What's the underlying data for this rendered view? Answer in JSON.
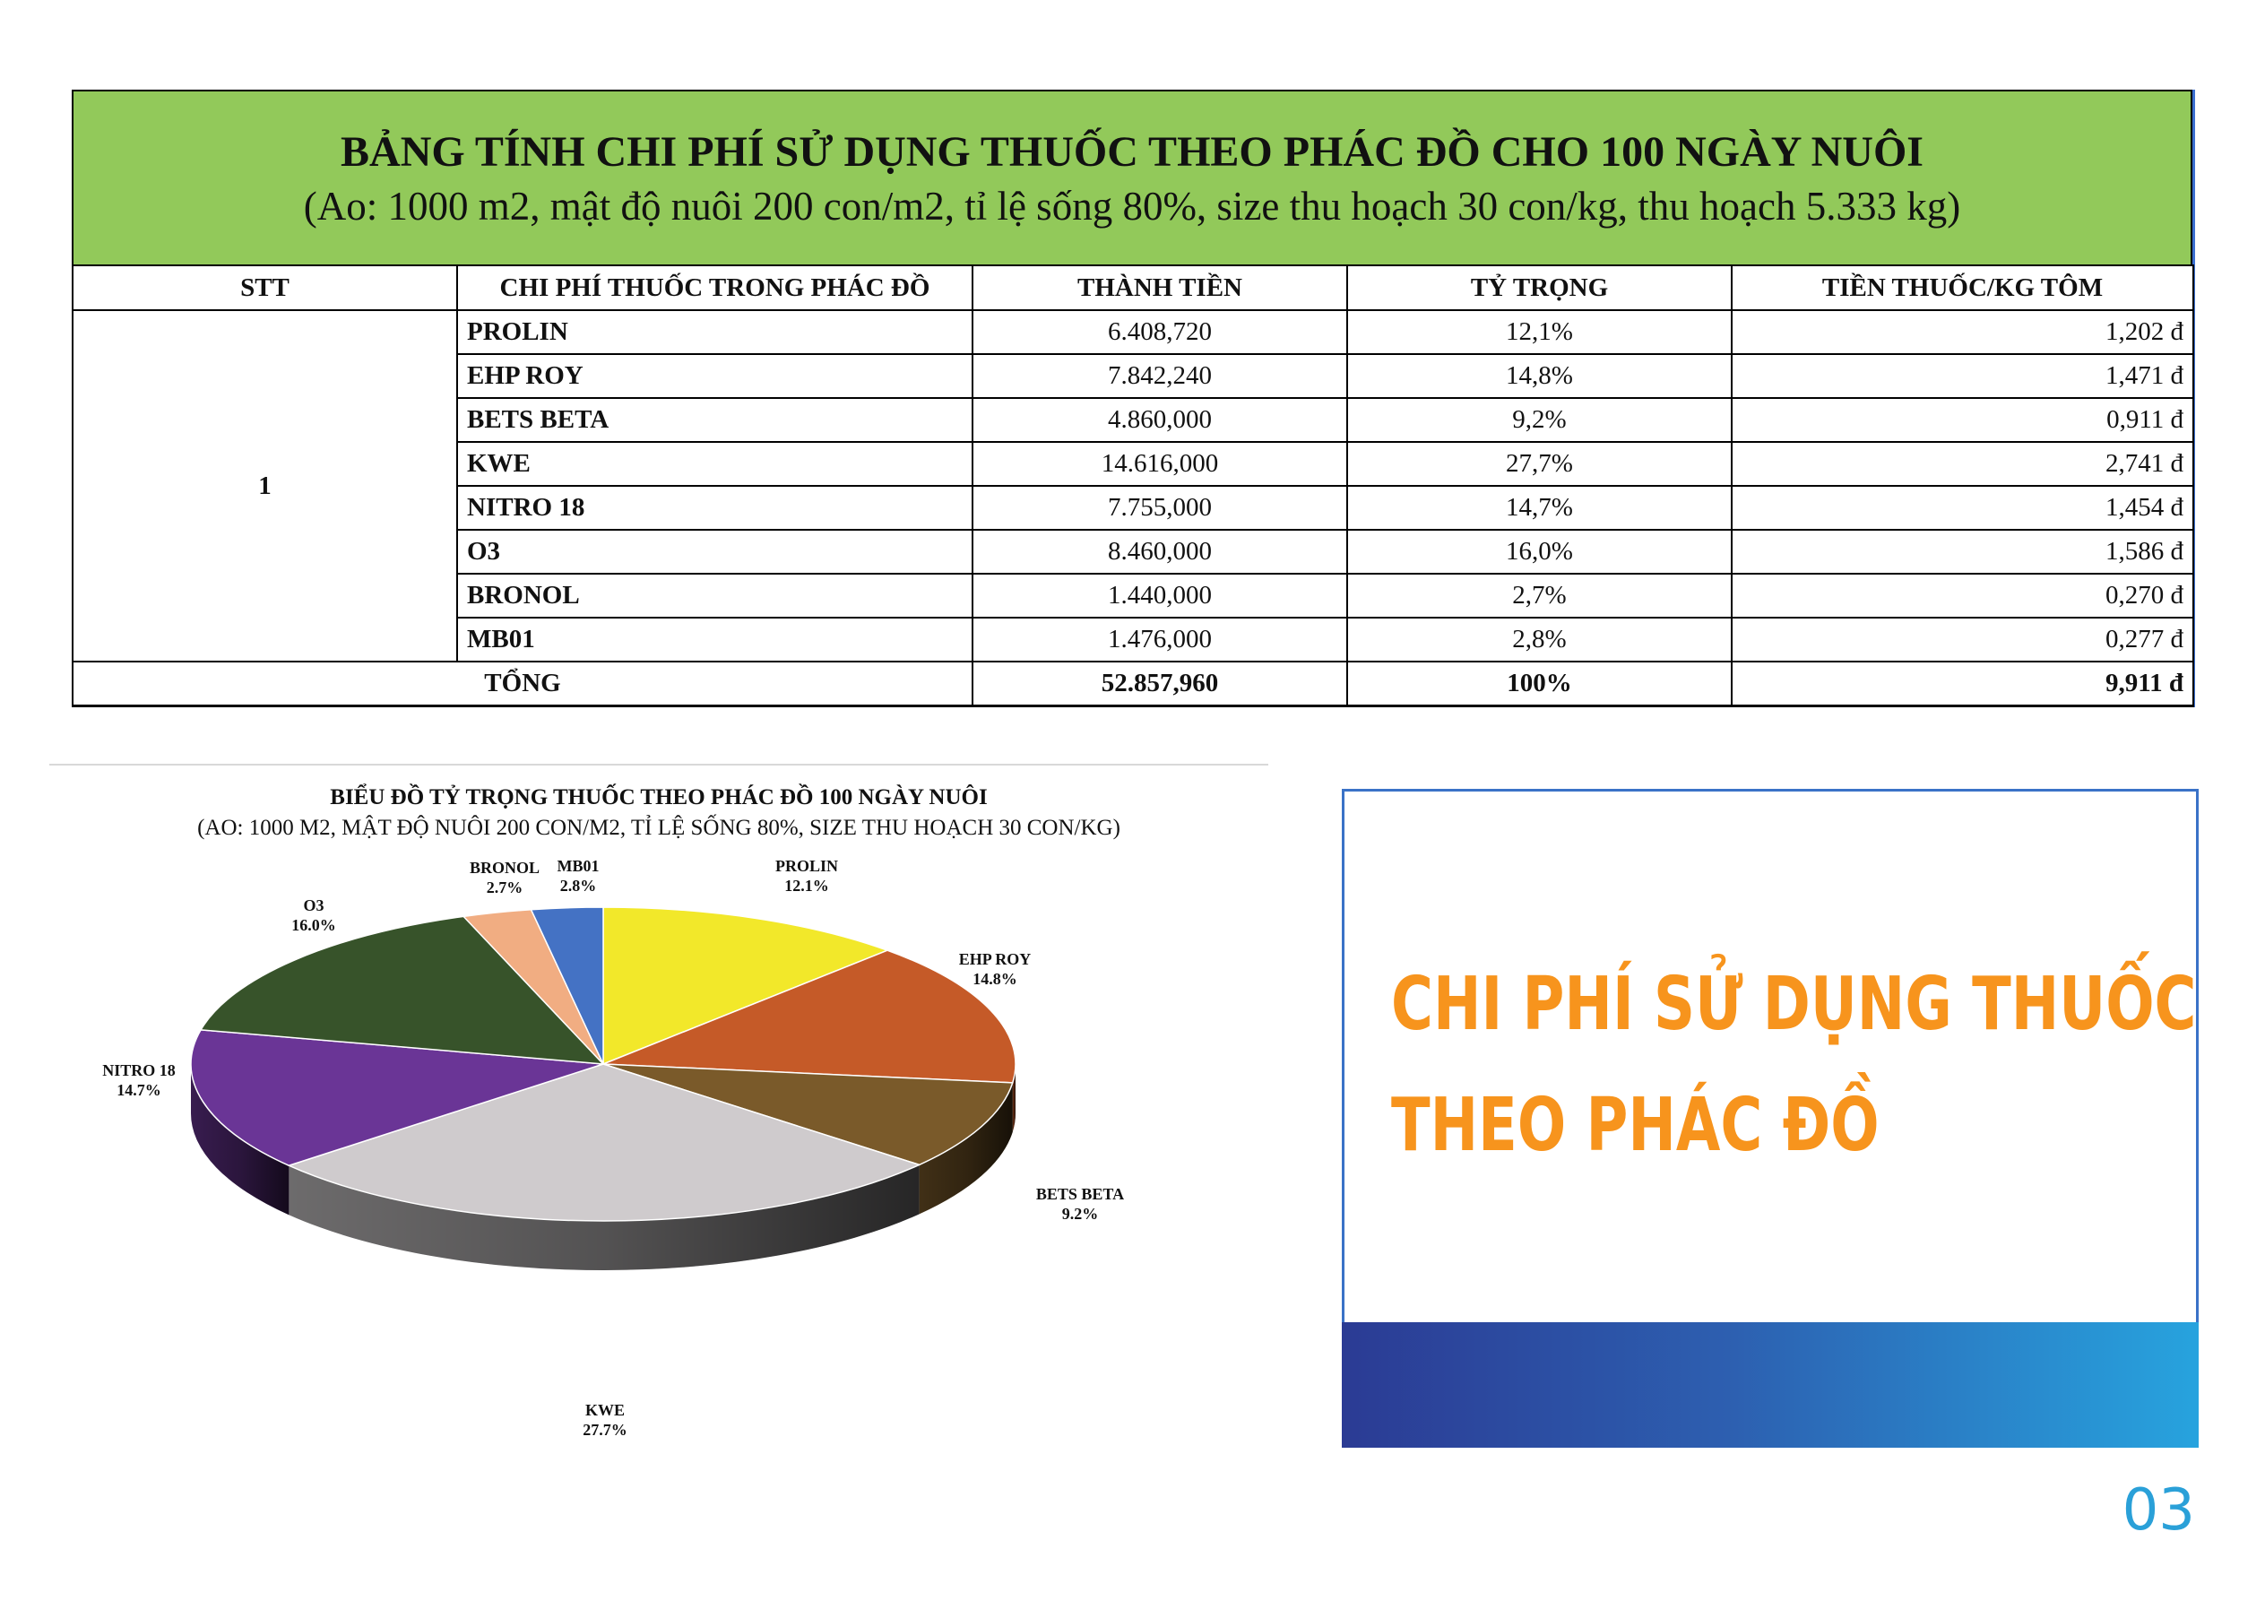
{
  "table": {
    "title": "BẢNG TÍNH CHI PHÍ SỬ DỤNG THUỐC THEO PHÁC ĐỒ CHO 100 NGÀY NUÔI",
    "subtitle": "(Ao: 1000 m2, mật độ nuôi 200 con/m2, tỉ lệ sống 80%, size thu hoạch 30 con/kg, thu hoạch 5.333 kg)",
    "headers": [
      "STT",
      "CHI PHÍ THUỐC TRONG PHÁC ĐỒ",
      "THÀNH TIỀN",
      "TỶ TRỌNG",
      "TIỀN THUỐC/KG TÔM"
    ],
    "stt": "1",
    "rows": [
      {
        "name": "PROLIN",
        "amount": "6.408,720",
        "share": "12,1%",
        "per_kg": "1,202 đ"
      },
      {
        "name": "EHP ROY",
        "amount": "7.842,240",
        "share": "14,8%",
        "per_kg": "1,471 đ"
      },
      {
        "name": "BETS BETA",
        "amount": "4.860,000",
        "share": "9,2%",
        "per_kg": "0,911 đ"
      },
      {
        "name": "KWE",
        "amount": "14.616,000",
        "share": "27,7%",
        "per_kg": "2,741 đ"
      },
      {
        "name": "NITRO 18",
        "amount": "7.755,000",
        "share": "14,7%",
        "per_kg": "1,454 đ"
      },
      {
        "name": "O3",
        "amount": "8.460,000",
        "share": "16,0%",
        "per_kg": "1,586 đ"
      },
      {
        "name": "BRONOL",
        "amount": "1.440,000",
        "share": "2,7%",
        "per_kg": "0,270 đ"
      },
      {
        "name": "MB01",
        "amount": "1.476,000",
        "share": "2,8%",
        "per_kg": "0,277 đ"
      }
    ],
    "total": {
      "label": "TỔNG",
      "amount": "52.857,960",
      "share": "100%",
      "per_kg": "9,911 đ"
    }
  },
  "chart_data": {
    "type": "pie",
    "title": "BIỂU ĐỒ TỶ TRỌNG THUỐC THEO PHÁC ĐỒ 100 NGÀY NUÔI",
    "subtitle": "(AO: 1000 M2, MẬT ĐỘ NUÔI 200 CON/M2, TỈ LỆ SỐNG 80%, SIZE THU HOẠCH 30 CON/KG)",
    "slices": [
      {
        "name": "PROLIN",
        "value": 12.1,
        "label": "12.1%",
        "color": "#f2e82a"
      },
      {
        "name": "EHP ROY",
        "value": 14.8,
        "label": "14.8%",
        "color": "#c55a28"
      },
      {
        "name": "BETS BETA",
        "value": 9.2,
        "label": "9.2%",
        "color": "#7a5a2a"
      },
      {
        "name": "KWE",
        "value": 27.7,
        "label": "27.7%",
        "color": "#cfcbcd"
      },
      {
        "name": "NITRO 18",
        "value": 14.7,
        "label": "14.7%",
        "color": "#6a3596"
      },
      {
        "name": "O3",
        "value": 16.0,
        "label": "16.0%",
        "color": "#37532a"
      },
      {
        "name": "BRONOL",
        "value": 2.7,
        "label": "2.7%",
        "color": "#f1ad82"
      },
      {
        "name": "MB01",
        "value": 2.8,
        "label": "2.8%",
        "color": "#4472c4"
      }
    ]
  },
  "panel": {
    "heading_line1": "CHI PHÍ SỬ DỤNG THUỐC",
    "heading_line2": "THEO PHÁC ĐỒ",
    "heading_color": "#f7941d",
    "band_colors": [
      "#2b3b94",
      "#27a3de"
    ]
  },
  "page_number": "03"
}
